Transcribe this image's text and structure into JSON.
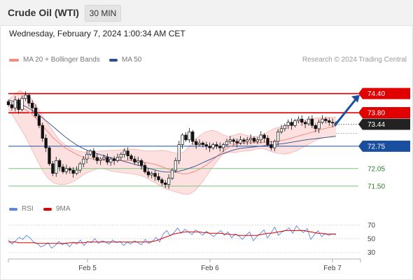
{
  "header": {
    "title": "Crude Oil (WTI)",
    "timeframe": "30 MIN"
  },
  "datetime": "Wednesday, February 7, 2024 1:00:34 AM CET",
  "copyright": "Research © 2024 Trading Central",
  "legend": {
    "main": [
      {
        "label": "MA 20 + Bollinger Bands",
        "color": "#f28b82"
      },
      {
        "label": "MA 50",
        "color": "#2c4f8e"
      }
    ],
    "rsi": [
      {
        "label": "RSI",
        "color": "#5b86e5"
      },
      {
        "label": "9MA",
        "color": "#e00000"
      }
    ]
  },
  "colors": {
    "resistance": "#e00000",
    "support": "#1a4fa0",
    "support_green": "#7bc47f",
    "last_price": "#222222",
    "arrow": "#1a4fa0",
    "candle_up": "#ffffff",
    "candle_down": "#111111"
  },
  "chart_data": [
    {
      "type": "candlestick",
      "title": "",
      "ylim": [
        71.3,
        74.7
      ],
      "x_ticks": [
        "Feb 5",
        "Feb 6",
        "Feb 7"
      ],
      "last_price": "73.44",
      "levels": [
        {
          "value": 74.4,
          "label": "74.40",
          "kind": "resistance"
        },
        {
          "value": 73.8,
          "label": "73.80",
          "kind": "resistance"
        },
        {
          "value": 72.75,
          "label": "72.75",
          "kind": "support"
        },
        {
          "value": 72.05,
          "label": "72.05",
          "kind": "support_minor"
        },
        {
          "value": 71.5,
          "label": "71.50",
          "kind": "support_minor"
        }
      ],
      "forecast_arrow": {
        "from": 73.44,
        "to": 74.4
      },
      "closes": [
        74.05,
        73.95,
        74.2,
        73.9,
        74.25,
        74.35,
        74.1,
        73.95,
        73.7,
        73.4,
        73.0,
        72.7,
        72.2,
        71.9,
        72.3,
        72.1,
        71.95,
        72.05,
        72.0,
        71.9,
        72.0,
        72.2,
        72.35,
        72.5,
        72.6,
        72.4,
        72.3,
        72.35,
        72.4,
        72.25,
        72.35,
        72.3,
        72.4,
        72.5,
        72.6,
        72.45,
        72.35,
        72.25,
        72.3,
        72.15,
        71.95,
        71.85,
        71.9,
        71.8,
        71.7,
        71.6,
        71.55,
        71.75,
        72.0,
        72.3,
        72.8,
        73.1,
        72.95,
        73.2,
        72.9,
        72.8,
        72.85,
        72.8,
        72.75,
        72.7,
        72.8,
        72.75,
        72.7,
        72.8,
        72.9,
        72.95,
        72.9,
        72.85,
        72.95,
        72.9,
        72.95,
        73.0,
        72.9,
        72.95,
        73.1,
        73.0,
        72.8,
        72.7,
        72.9,
        73.2,
        73.3,
        73.4,
        73.5,
        73.4,
        73.55,
        73.6,
        73.5,
        73.45,
        73.6,
        73.4,
        73.3,
        73.5,
        73.6,
        73.55,
        73.5,
        73.48,
        73.44
      ],
      "ma20": [
        74.05,
        74.02,
        73.98,
        73.9,
        73.78,
        73.6,
        73.4,
        73.2,
        73.0,
        72.85,
        72.7,
        72.6,
        72.5,
        72.42,
        72.38,
        72.35,
        72.33,
        72.32,
        72.3,
        72.3,
        72.3,
        72.3,
        72.3,
        72.28,
        72.25,
        72.22,
        72.18,
        72.12,
        72.05,
        71.98,
        71.92,
        71.88,
        71.9,
        71.96,
        72.05,
        72.15,
        72.3,
        72.45,
        72.6,
        72.72,
        72.8,
        72.84,
        72.85,
        72.86,
        72.86,
        72.87,
        72.88,
        72.9,
        72.92,
        72.95,
        73.0,
        73.05,
        73.1,
        73.15,
        73.2,
        73.26,
        73.3,
        73.35,
        73.38
      ],
      "ma50": [
        74.2,
        74.15,
        74.08,
        74.0,
        73.9,
        73.78,
        73.64,
        73.5,
        73.35,
        73.2,
        73.05,
        72.92,
        72.8,
        72.7,
        72.62,
        72.56,
        72.5,
        72.45,
        72.4,
        72.35,
        72.3,
        72.25,
        72.2,
        72.15,
        72.1,
        72.05,
        72.0,
        71.96,
        71.94,
        71.94,
        71.96,
        72.0,
        72.06,
        72.12,
        72.2,
        72.28,
        72.36,
        72.44,
        72.52,
        72.58,
        72.64,
        72.68,
        72.7,
        72.72,
        72.74,
        72.76,
        72.78,
        72.8,
        72.82,
        72.84,
        72.87,
        72.9,
        72.93,
        72.96,
        72.98,
        73.0,
        73.02,
        73.04,
        73.06
      ],
      "bb_upper": [
        74.2,
        74.35,
        74.5,
        74.4,
        74.25,
        74.0,
        73.7,
        73.45,
        73.2,
        72.95,
        72.8,
        72.7,
        72.62,
        72.58,
        72.55,
        72.56,
        72.6,
        72.6,
        72.62,
        72.62,
        72.64,
        72.66,
        72.66,
        72.64,
        72.6,
        72.6,
        72.6,
        72.62,
        72.6,
        72.56,
        72.52,
        72.56,
        72.75,
        72.95,
        73.1,
        73.2,
        73.25,
        73.2,
        73.1,
        73.05,
        73.1,
        73.15,
        73.1,
        73.05,
        73.05,
        73.1,
        73.2,
        73.3,
        73.35,
        73.4,
        73.45,
        73.5,
        73.55,
        73.6,
        73.62,
        73.64,
        73.65,
        73.66,
        73.66
      ],
      "bb_lower": [
        73.9,
        73.65,
        73.35,
        73.05,
        72.7,
        72.35,
        72.0,
        71.75,
        71.6,
        71.55,
        71.55,
        71.6,
        71.7,
        71.82,
        71.92,
        72.0,
        72.05,
        72.04,
        71.98,
        71.95,
        71.92,
        71.9,
        71.88,
        71.85,
        71.8,
        71.7,
        71.6,
        71.5,
        71.4,
        71.35,
        71.3,
        71.25,
        71.25,
        71.35,
        71.55,
        71.8,
        72.05,
        72.3,
        72.5,
        72.55,
        72.55,
        72.58,
        72.6,
        72.62,
        72.66,
        72.68,
        72.62,
        72.55,
        72.52,
        72.5,
        72.55,
        72.6,
        72.7,
        72.8,
        72.9,
        72.98,
        73.02,
        73.05,
        73.1
      ]
    },
    {
      "type": "line",
      "title": "RSI",
      "ylim": [
        20,
        80
      ],
      "y_ticks": [
        "70",
        "50",
        "30"
      ],
      "series": [
        {
          "name": "RSI",
          "values": [
            48,
            42,
            47,
            52,
            49,
            55,
            51,
            45,
            43,
            38,
            40,
            44,
            36,
            40,
            46,
            41,
            44,
            38,
            45,
            42,
            48,
            40,
            46,
            44,
            50,
            43,
            47,
            45,
            42,
            48,
            44,
            46,
            40,
            45,
            42,
            47,
            44,
            41,
            49,
            43,
            46,
            52,
            45,
            57,
            62,
            54,
            59,
            66,
            58,
            64,
            60,
            56,
            63,
            59,
            55,
            61,
            57,
            53,
            58,
            62,
            55,
            60,
            51,
            57,
            54,
            49,
            55,
            60,
            47,
            53,
            58,
            63,
            51,
            59,
            67,
            55,
            60,
            62,
            66,
            58,
            69,
            63,
            59,
            65,
            49,
            56,
            62,
            53,
            58,
            55,
            57,
            56
          ]
        },
        {
          "name": "9MA",
          "values": [
            45,
            45,
            45,
            44,
            44,
            44,
            44,
            44,
            43,
            43,
            43,
            43,
            43,
            43,
            43,
            43,
            43,
            44,
            44,
            44,
            44,
            44,
            45,
            45,
            45,
            45,
            45,
            45,
            45,
            45,
            45,
            45,
            45,
            45,
            45,
            45,
            45,
            45,
            45,
            45,
            46,
            47,
            49,
            51,
            53,
            55,
            57,
            58,
            59,
            60,
            60,
            60,
            60,
            60,
            59,
            59,
            58,
            58,
            58,
            58,
            57,
            57,
            56,
            56,
            55,
            55,
            55,
            55,
            55,
            55,
            56,
            57,
            58,
            58,
            59,
            60,
            61,
            62,
            62,
            62,
            62,
            62,
            62,
            61,
            60,
            59,
            58,
            58,
            57,
            57,
            57,
            57
          ]
        }
      ]
    }
  ]
}
